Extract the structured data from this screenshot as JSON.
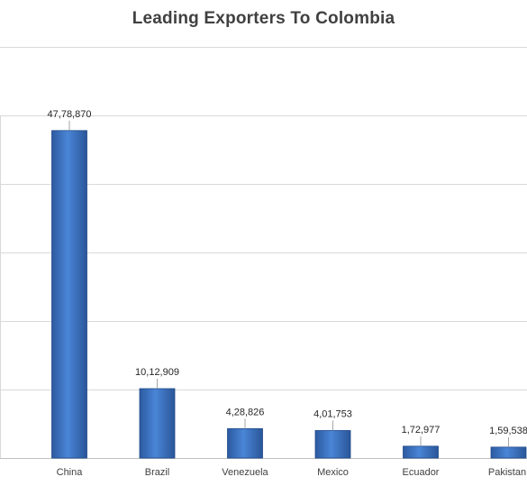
{
  "chart_data": {
    "type": "bar",
    "title": "Leading Exporters To Colombia",
    "categories": [
      "China",
      "Brazil",
      "Venezuela",
      "Mexico",
      "Ecuador",
      "Pakistan"
    ],
    "values": [
      4778870,
      1012909,
      428826,
      401753,
      172977,
      159538
    ],
    "data_labels": [
      "47,78,870",
      "10,12,909",
      "4,28,826",
      "4,01,753",
      "1,72,977",
      "1,59,538"
    ],
    "ylim": [
      0,
      6000000
    ],
    "grid": true,
    "legend": "none",
    "bar_color": "#3a70c0"
  }
}
